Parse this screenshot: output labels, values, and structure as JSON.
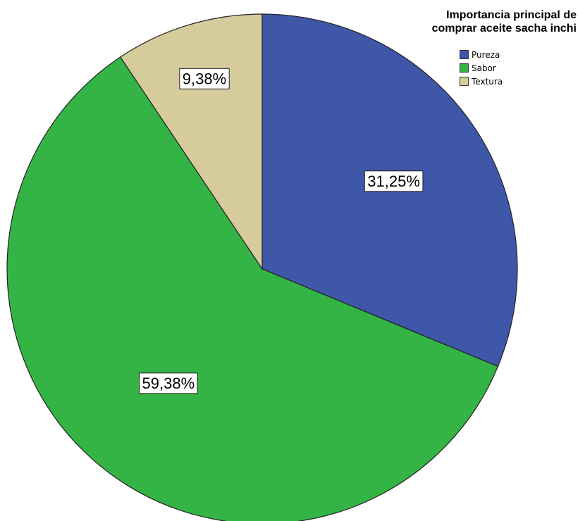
{
  "chart_data": {
    "type": "pie",
    "title_lines": [
      "Importancia principal de",
      "comprar aceite sacha inchi"
    ],
    "slices": [
      {
        "label": "Pureza",
        "value": 31.25,
        "display": "31,25%",
        "color": "#3f57a9"
      },
      {
        "label": "Sabor",
        "value": 59.38,
        "display": "59,38%",
        "color": "#35b446"
      },
      {
        "label": "Textura",
        "value": 9.38,
        "display": "9,38%",
        "color": "#d5cb9b"
      }
    ],
    "legend_position": "top-right"
  }
}
